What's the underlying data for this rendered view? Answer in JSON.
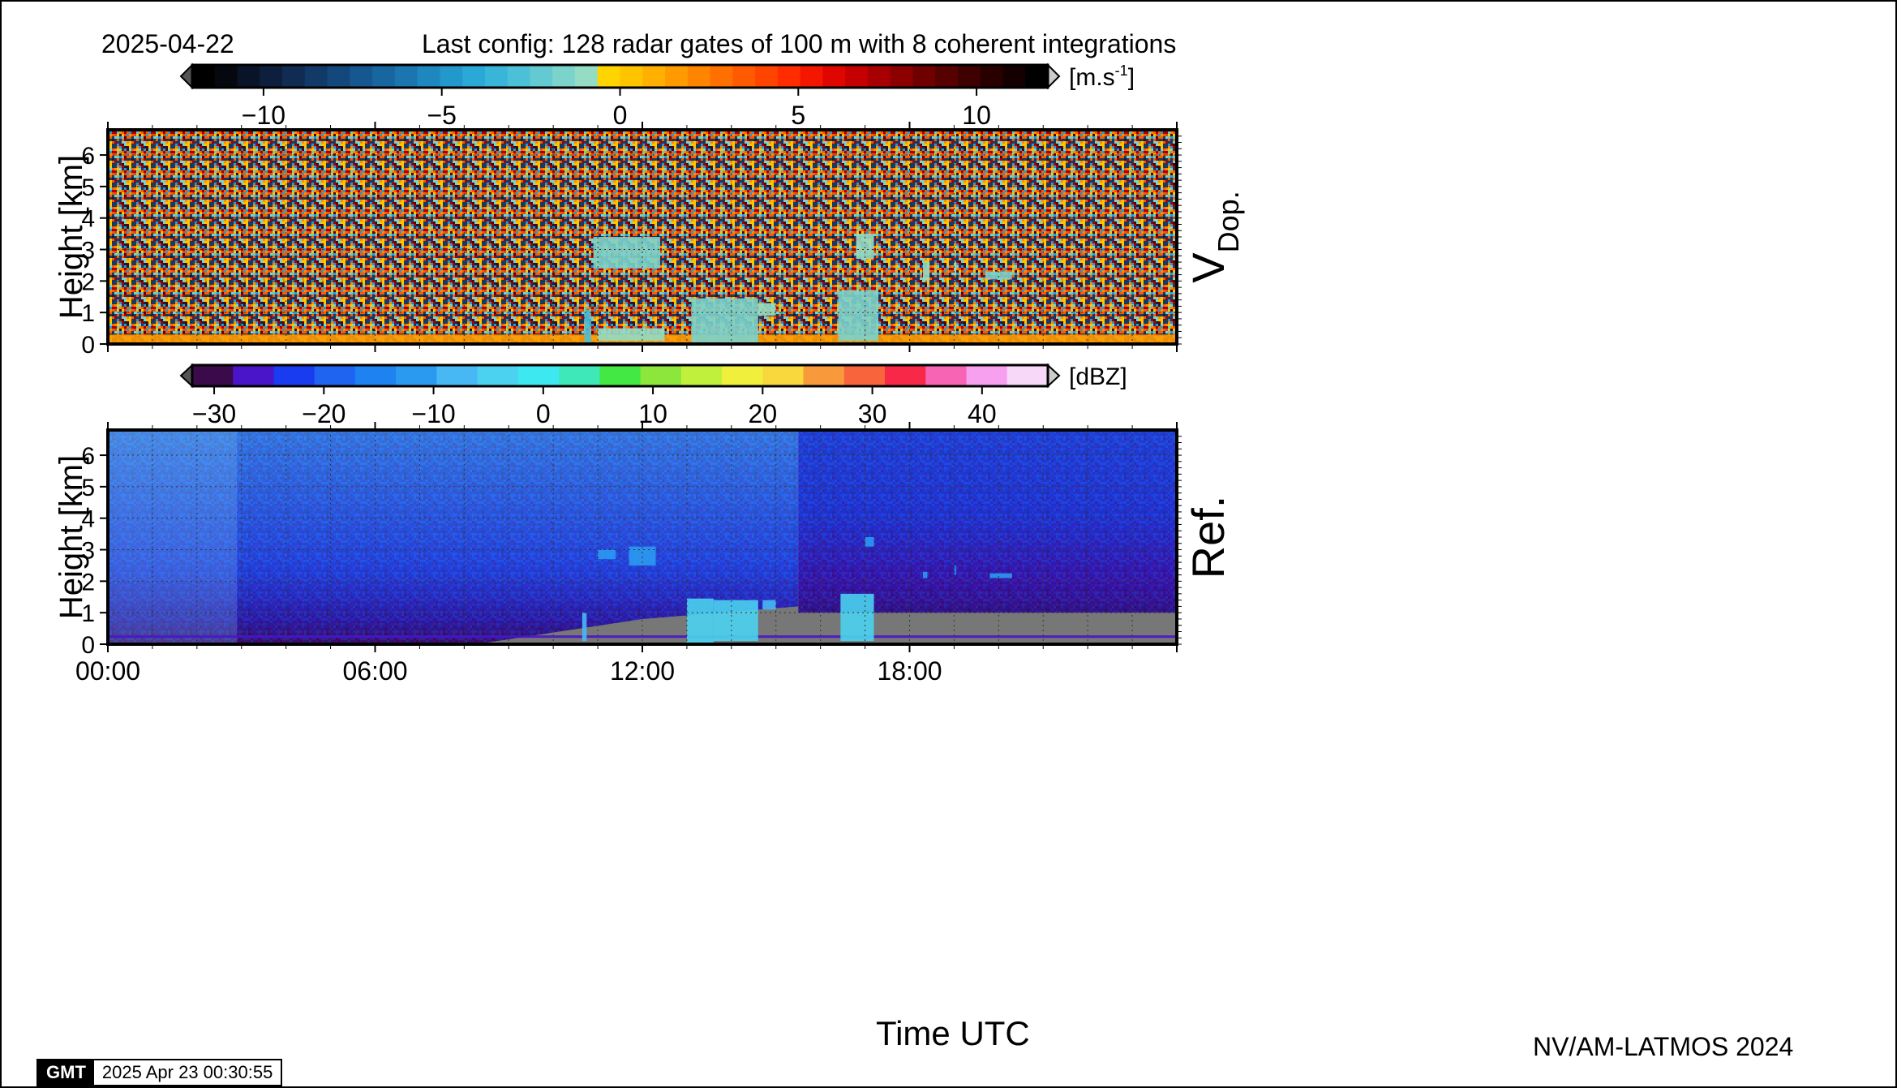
{
  "header": {
    "date": "2025-04-22",
    "config": "Last config: 128 radar gates of 100 m with 8 coherent integrations"
  },
  "footer": {
    "credit": "NV/AM-LATMOS 2024",
    "stamp_logo": "GMT",
    "stamp_time": "2025 Apr 23 00:30:55"
  },
  "colors": {
    "noise_gray": "#777777",
    "frame": "#000000"
  },
  "chart_data": [
    {
      "type": "heatmap",
      "title": "V Dop.",
      "panel_label_main": "V",
      "panel_label_sub": "Dop.",
      "ylabel": "Height [km]",
      "xlabel": "",
      "x_range_hours": [
        0,
        24
      ],
      "ylim": [
        0,
        6.8
      ],
      "y_ticks": [
        0,
        1,
        2,
        3,
        4,
        5,
        6
      ],
      "x_ticks": [],
      "grid": true,
      "colorbar": {
        "min": -12,
        "max": 12,
        "unit_prefix": "[m.s",
        "unit_sup": "-1",
        "unit_suffix": "]",
        "ticks": [
          -10,
          -5,
          0,
          5,
          10
        ],
        "tick_labels": [
          "−10",
          "−5",
          "0",
          "5",
          "10"
        ],
        "colors": [
          "#000000",
          "#05080f",
          "#0a1428",
          "#0d1f3c",
          "#102c52",
          "#123a68",
          "#14487d",
          "#165790",
          "#1866a0",
          "#1b76b0",
          "#1e87bf",
          "#2298cc",
          "#2aa8d6",
          "#38b5d8",
          "#4cc0d6",
          "#63cad2",
          "#7bd3cc",
          "#94dcc3",
          "#ffd400",
          "#ffc400",
          "#ffb000",
          "#ff9a00",
          "#ff8500",
          "#ff7000",
          "#ff5a00",
          "#ff4400",
          "#ff2c00",
          "#f51600",
          "#e00600",
          "#c50000",
          "#a80000",
          "#8c0000",
          "#700000",
          "#560000",
          "#3e0000",
          "#280000",
          "#140000",
          "#000000"
        ]
      },
      "features": [
        {
          "t0": 0.0,
          "t1": 24.0,
          "h0": 0.0,
          "h1": 0.3,
          "value": 1.5
        },
        {
          "t0": 10.7,
          "t1": 10.85,
          "h0": 0.05,
          "h1": 1.1,
          "value": -3
        },
        {
          "t0": 11.0,
          "t1": 12.5,
          "h0": 0.1,
          "h1": 0.5,
          "value": -1
        },
        {
          "t0": 13.1,
          "t1": 14.6,
          "h0": 0.05,
          "h1": 1.45,
          "value": -1.5
        },
        {
          "t0": 14.6,
          "t1": 15.0,
          "h0": 0.9,
          "h1": 1.3,
          "value": -1
        },
        {
          "t0": 16.4,
          "t1": 17.3,
          "h0": 0.1,
          "h1": 1.7,
          "value": -1.5
        },
        {
          "t0": 10.9,
          "t1": 12.4,
          "h0": 2.4,
          "h1": 3.4,
          "value": -1.5
        },
        {
          "t0": 16.8,
          "t1": 17.2,
          "h0": 2.7,
          "h1": 3.5,
          "value": -1
        },
        {
          "t0": 18.3,
          "t1": 18.45,
          "h0": 2.0,
          "h1": 2.6,
          "value": -1
        },
        {
          "t0": 19.0,
          "t1": 19.05,
          "h0": 2.2,
          "h1": 2.6,
          "value": -1
        },
        {
          "t0": 19.7,
          "t1": 20.3,
          "h0": 2.05,
          "h1": 2.3,
          "value": -1.5
        }
      ]
    },
    {
      "type": "heatmap",
      "title": "Ref.",
      "panel_label_main": "Ref.",
      "panel_label_sub": "",
      "ylabel": "Height [km]",
      "xlabel": "Time UTC",
      "x_range_hours": [
        0,
        24
      ],
      "ylim": [
        0,
        6.8
      ],
      "y_ticks": [
        0,
        1,
        2,
        3,
        4,
        5,
        6
      ],
      "x_ticks": [
        0,
        6,
        12,
        18
      ],
      "x_tick_labels": [
        "00:00",
        "06:00",
        "12:00",
        "18:00"
      ],
      "grid": true,
      "colorbar": {
        "min": -32,
        "max": 46,
        "unit_prefix": "[dBZ]",
        "unit_sup": "",
        "unit_suffix": "",
        "ticks": [
          -30,
          -20,
          -10,
          0,
          10,
          20,
          30,
          40
        ],
        "tick_labels": [
          "−30",
          "−20",
          "−10",
          "0",
          "10",
          "20",
          "30",
          "40"
        ],
        "colors": [
          "#3a0a4a",
          "#4a14c8",
          "#1a3cf0",
          "#1e64f0",
          "#1e82f0",
          "#2a9af0",
          "#48b8f5",
          "#4ad2f0",
          "#3ee8f0",
          "#3ee8b8",
          "#44e844",
          "#8ce63c",
          "#c0f03c",
          "#f0f03c",
          "#f8d83c",
          "#f89a3c",
          "#f8643c",
          "#f82848",
          "#f864b4",
          "#f8a0f0",
          "#f8d8f8"
        ]
      },
      "features": [
        {
          "t0": 0.0,
          "t1": 24.0,
          "h0": 0.2,
          "h1": 0.28,
          "value": -25
        },
        {
          "t0": 10.65,
          "t1": 10.75,
          "h0": 0.1,
          "h1": 1.0,
          "value": -8
        },
        {
          "t0": 13.0,
          "t1": 13.6,
          "h0": 0.05,
          "h1": 1.45,
          "value": -5
        },
        {
          "t0": 13.6,
          "t1": 14.6,
          "h0": 0.1,
          "h1": 1.4,
          "value": -3
        },
        {
          "t0": 14.7,
          "t1": 15.0,
          "h0": 1.1,
          "h1": 1.4,
          "value": -8
        },
        {
          "t0": 16.45,
          "t1": 17.2,
          "h0": 0.1,
          "h1": 1.6,
          "value": -6
        },
        {
          "t0": 11.0,
          "t1": 11.4,
          "h0": 2.7,
          "h1": 3.0,
          "value": -12
        },
        {
          "t0": 11.7,
          "t1": 12.3,
          "h0": 2.5,
          "h1": 3.1,
          "value": -10
        },
        {
          "t0": 17.0,
          "t1": 17.2,
          "h0": 3.1,
          "h1": 3.4,
          "value": -12
        },
        {
          "t0": 18.3,
          "t1": 18.4,
          "h0": 2.1,
          "h1": 2.3,
          "value": -12
        },
        {
          "t0": 19.0,
          "t1": 19.05,
          "h0": 2.2,
          "h1": 2.5,
          "value": -14
        },
        {
          "t0": 19.8,
          "t1": 20.3,
          "h0": 2.1,
          "h1": 2.25,
          "value": -10
        }
      ]
    }
  ]
}
